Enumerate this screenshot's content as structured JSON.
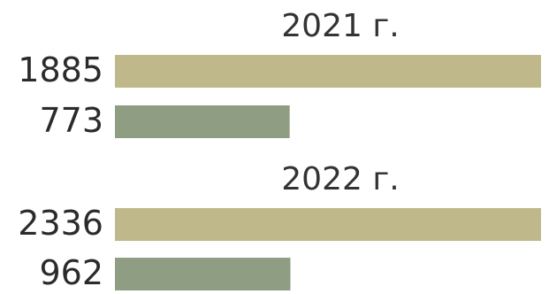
{
  "chart_data": {
    "type": "bar",
    "orientation": "horizontal",
    "groups": [
      {
        "label": "2021 г.",
        "values": [
          1885,
          773
        ],
        "colors": [
          "#bfb88a",
          "#8f9e82"
        ]
      },
      {
        "label": "2022 г.",
        "values": [
          2336,
          962
        ],
        "colors": [
          "#bfb88a",
          "#8f9e82"
        ]
      }
    ],
    "series_colors": [
      "#bfb88a",
      "#8f9e82"
    ],
    "title": "",
    "xlabel": "",
    "ylabel": "",
    "grid": false,
    "legend": "none"
  }
}
